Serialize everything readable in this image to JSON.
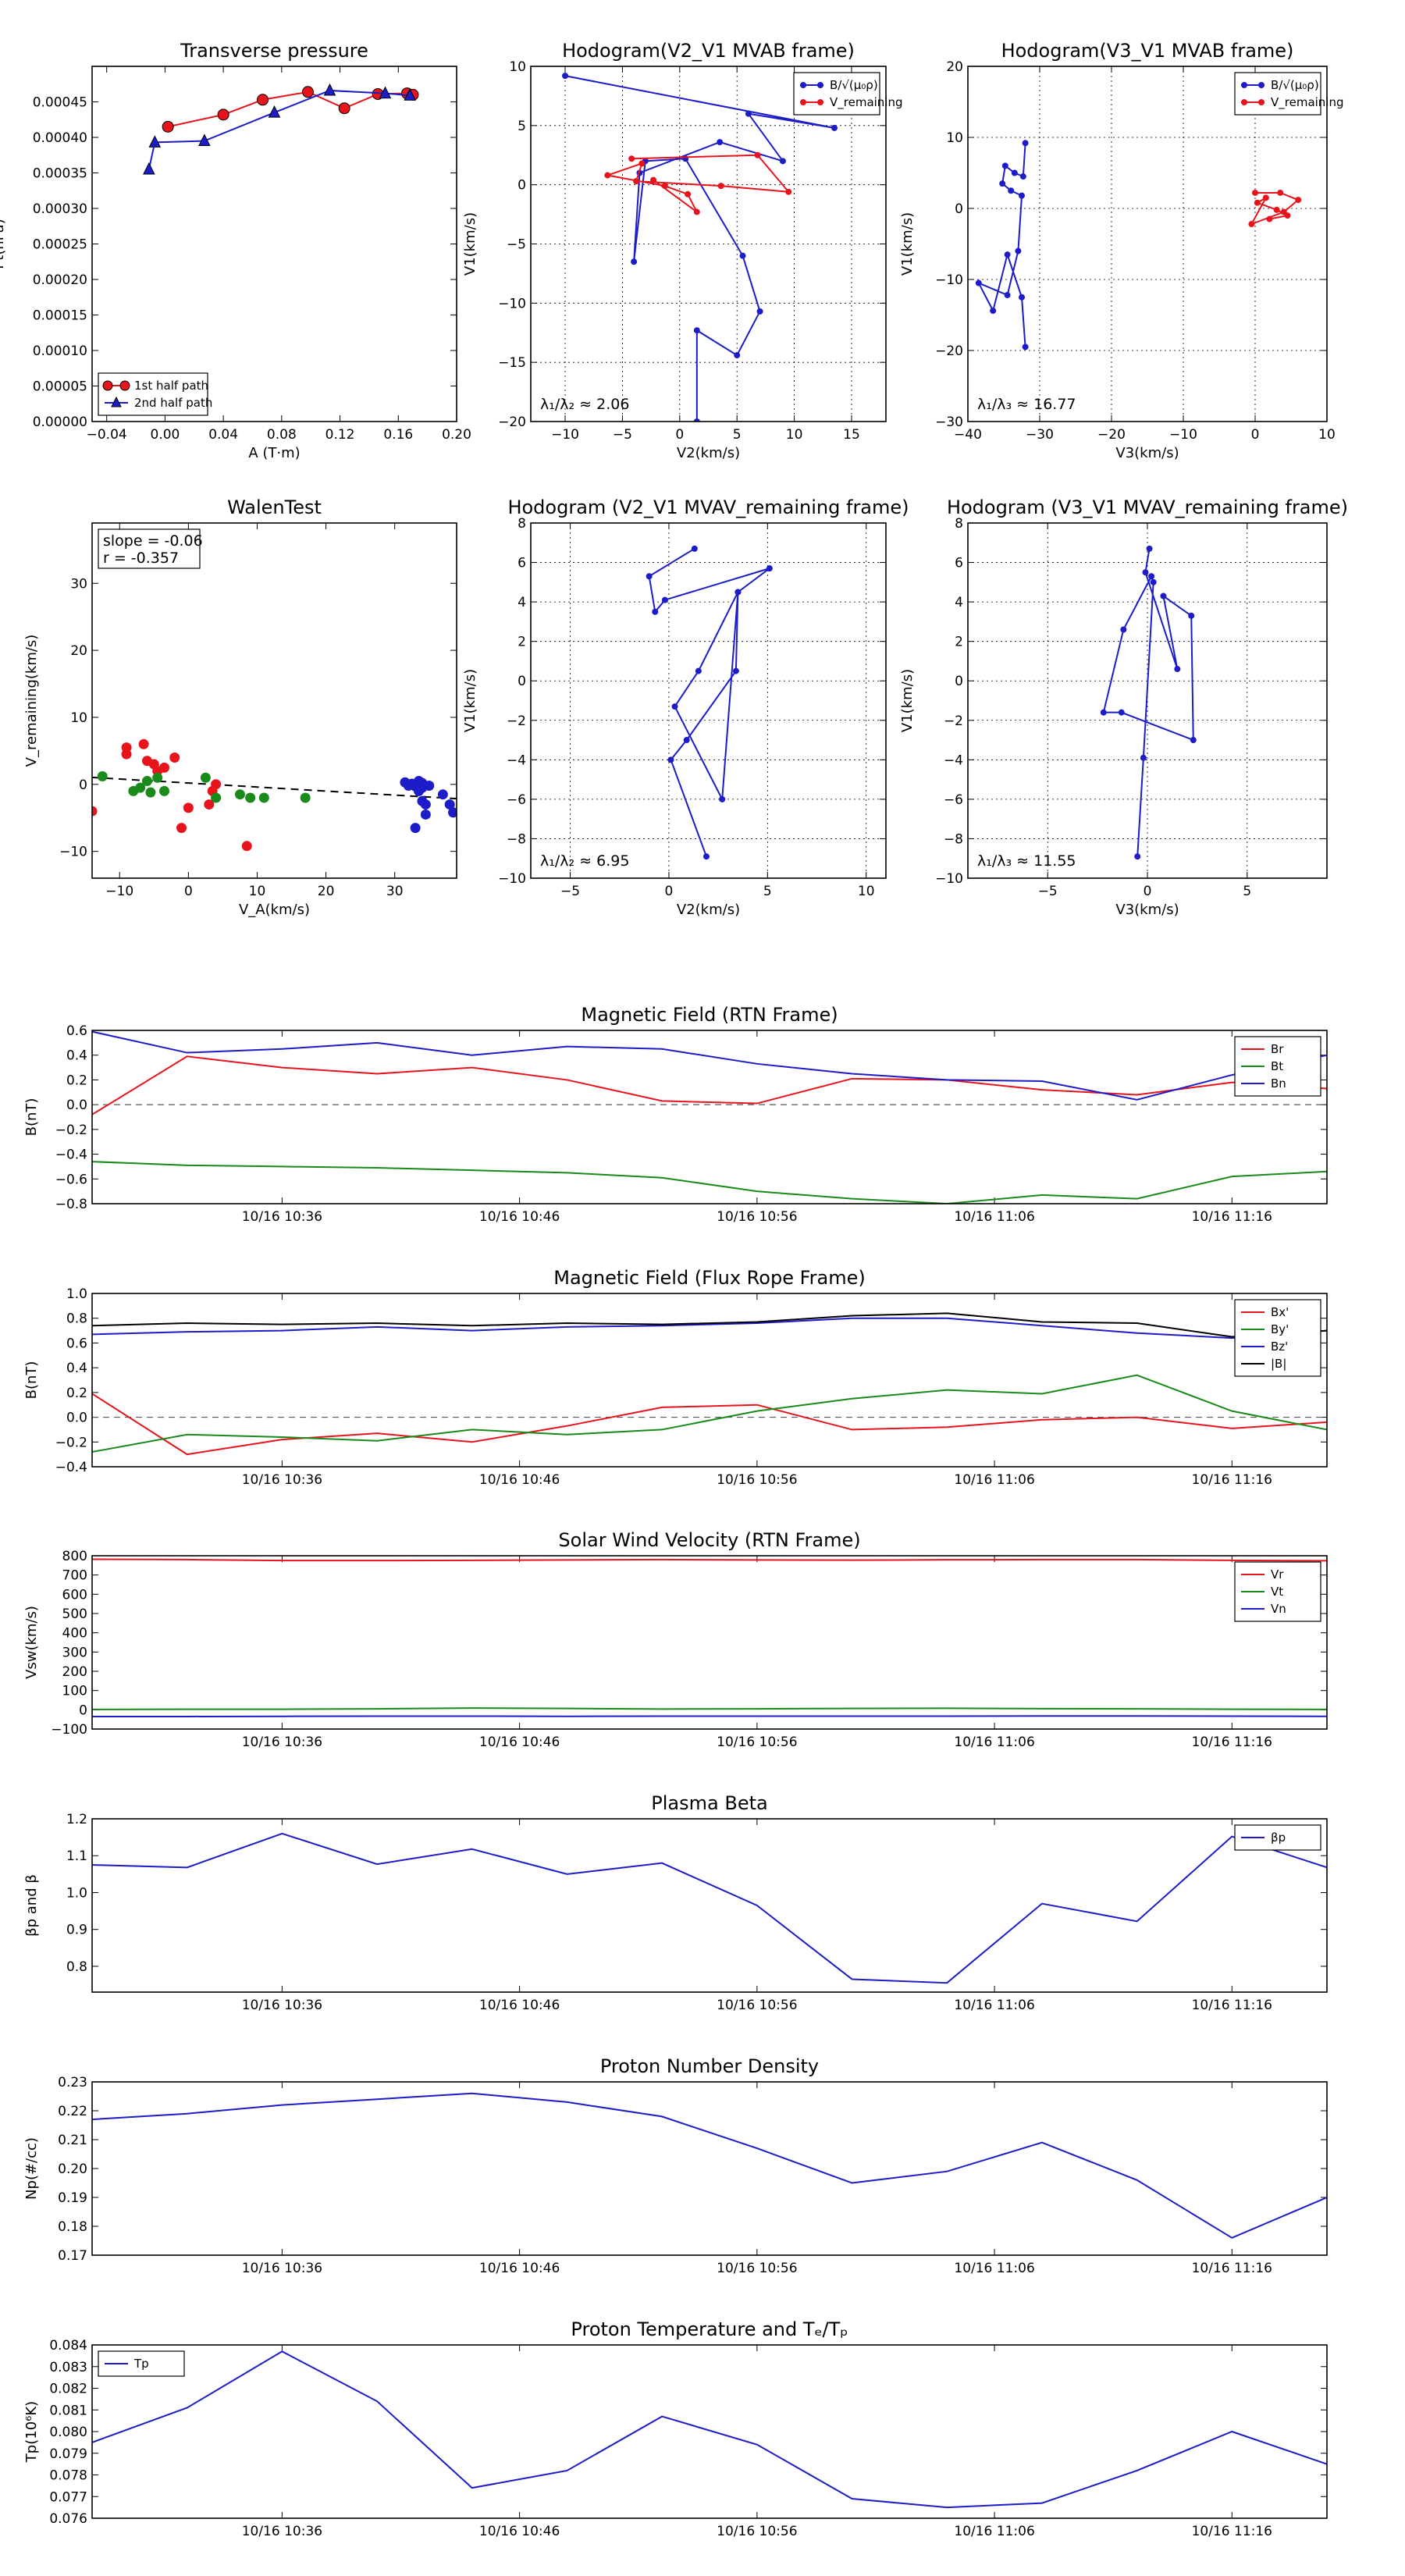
{
  "chart_data": [
    {
      "id": "transverse-pressure",
      "type": "line",
      "title": "Transverse pressure",
      "xlabel": "A (T·m)",
      "ylabel": "Pt(nPa)",
      "xlim": [
        -0.05,
        0.2
      ],
      "ylim": [
        0,
        0.0005
      ],
      "xticks": [
        -0.04,
        0.0,
        0.04,
        0.08,
        0.12,
        0.16,
        0.2
      ],
      "xtick_labels": [
        "−0.04",
        "0.00",
        "0.04",
        "0.08",
        "0.12",
        "0.16",
        "0.20"
      ],
      "yticks": [
        0,
        5e-05,
        0.0001,
        0.00015,
        0.0002,
        0.00025,
        0.0003,
        0.00035,
        0.0004,
        0.00045
      ],
      "ytick_labels": [
        "0.00000",
        "0.00005",
        "0.00010",
        "0.00015",
        "0.00020",
        "0.00025",
        "0.00030",
        "0.00035",
        "0.00040",
        "0.00045"
      ],
      "grid": false,
      "legend": "lower-left",
      "series": [
        {
          "name": "1st half path",
          "color": "#e8141c",
          "marker": "circle",
          "x": [
            0.002,
            0.04,
            0.067,
            0.098,
            0.123,
            0.146,
            0.166,
            0.17
          ],
          "y": [
            0.000415,
            0.000432,
            0.000453,
            0.000464,
            0.000441,
            0.000461,
            0.000462,
            0.00046
          ]
        },
        {
          "name": "2nd half path",
          "color": "#1c1cc8",
          "marker": "triangle",
          "x": [
            -0.011,
            -0.007,
            0.027,
            0.075,
            0.113,
            0.151,
            0.168
          ],
          "y": [
            0.000355,
            0.000393,
            0.000395,
            0.000435,
            0.000466,
            0.000462,
            0.000459
          ]
        }
      ]
    },
    {
      "id": "hodogram-v2v1-mvab",
      "type": "line",
      "title": "Hodogram(V2_V1 MVAB frame)",
      "xlabel": "V2(km/s)",
      "ylabel": "V1(km/s)",
      "xlim": [
        -13,
        18
      ],
      "ylim": [
        -20,
        10
      ],
      "xticks": [
        -10,
        -5,
        0,
        5,
        10,
        15
      ],
      "yticks": [
        -20,
        -15,
        -10,
        -5,
        0,
        5,
        10
      ],
      "grid": true,
      "legend": "top-right",
      "annotation": "λ₁/λ₂ ≈ 2.06",
      "series": [
        {
          "name": "B/√(μ₀ρ)",
          "color": "#1c1cc8",
          "x": [
            -10,
            13.5,
            6,
            9,
            3.5,
            -3.5,
            -4,
            -3,
            0.5,
            5.5,
            7,
            5,
            1.5,
            1.5
          ],
          "y": [
            9.2,
            4.8,
            6,
            2,
            3.6,
            1,
            -6.5,
            2,
            2.2,
            -6,
            -10.7,
            -14.4,
            -12.3,
            -20
          ]
        },
        {
          "name": "V_remaining",
          "color": "#e8141c",
          "x": [
            -4.2,
            6.8,
            9.5,
            3.6,
            -3.8,
            -3.3,
            -6.3,
            -1.3,
            0.7,
            1.5,
            -2.3
          ],
          "y": [
            2.2,
            2.5,
            -0.6,
            -0.1,
            0.3,
            1.8,
            0.8,
            -0.1,
            -0.8,
            -2.3,
            0.4
          ]
        }
      ]
    },
    {
      "id": "hodogram-v3v1-mvab",
      "type": "line",
      "title": "Hodogram(V3_V1 MVAB frame)",
      "xlabel": "V3(km/s)",
      "ylabel": "V1(km/s)",
      "xlim": [
        -40,
        10
      ],
      "ylim": [
        -30,
        20
      ],
      "xticks": [
        -40,
        -30,
        -20,
        -10,
        0,
        10
      ],
      "yticks": [
        -30,
        -20,
        -10,
        0,
        10,
        20
      ],
      "grid": true,
      "legend": "top-right",
      "annotation": "λ₁/λ₃ ≈ 16.77",
      "series": [
        {
          "name": "B/√(μ₀ρ)",
          "color": "#1c1cc8",
          "x": [
            -32,
            -32.3,
            -33.5,
            -34.8,
            -35.2,
            -34,
            -32.5,
            -33,
            -34.5,
            -38.5,
            -36.5,
            -34.5,
            -32.5,
            -32
          ],
          "y": [
            9.2,
            4.5,
            5,
            6,
            3.5,
            2.5,
            1.8,
            -6,
            -12.2,
            -10.5,
            -14.4,
            -6.5,
            -12.5,
            -19.5
          ]
        },
        {
          "name": "V_remaining",
          "color": "#e8141c",
          "x": [
            0,
            3.5,
            6,
            4,
            -0.5,
            1.5,
            0.3,
            3,
            4.5,
            2
          ],
          "y": [
            2.2,
            2.2,
            1.2,
            -0.5,
            -2.2,
            1.5,
            0.8,
            -0.2,
            -1,
            -1.5
          ]
        }
      ]
    },
    {
      "id": "walen-test",
      "type": "scatter",
      "title": "WalenTest",
      "xlabel": "V_A(km/s)",
      "ylabel": "V_remaining(km/s)",
      "xlim": [
        -14,
        39
      ],
      "ylim": [
        -14,
        39
      ],
      "xticks": [
        -10,
        0,
        10,
        20,
        30
      ],
      "yticks": [
        -10,
        0,
        10,
        20,
        30
      ],
      "grid": false,
      "annotation_lines": [
        "slope = -0.06",
        "r = -0.357"
      ],
      "fit": {
        "slope": -0.06,
        "intercept": 0.2,
        "color": "#000000"
      },
      "series": [
        {
          "name": "",
          "color": "#e8141c",
          "x": [
            -14,
            -9,
            -9,
            -6.5,
            -6,
            -5,
            -4.5,
            -3.5,
            -2,
            -1,
            0,
            3,
            3.5,
            4,
            8.5
          ],
          "y": [
            -4,
            4.5,
            5.5,
            6,
            3.5,
            3,
            2,
            2.5,
            4,
            -6.5,
            -3.5,
            -3,
            -1,
            0,
            -9.2
          ]
        },
        {
          "name": "",
          "color": "#1a8a1a",
          "x": [
            -12.5,
            -8,
            -7,
            -6,
            -5.5,
            -4.5,
            -3.5,
            2.5,
            4,
            7.5,
            9,
            11,
            17
          ],
          "y": [
            1.2,
            -1,
            -0.5,
            0.5,
            -1.2,
            1,
            -1,
            1,
            -2,
            -1.5,
            -2,
            -2,
            -2
          ]
        },
        {
          "name": "",
          "color": "#1c1cc8",
          "x": [
            31.5,
            32,
            32.5,
            33,
            33.5,
            33.5,
            34,
            34,
            34.5,
            34.5,
            35,
            33,
            34,
            37,
            38,
            38.5
          ],
          "y": [
            0.3,
            -0.2,
            0.1,
            -0.3,
            0.5,
            -1,
            0.2,
            -0.5,
            -3,
            -4.5,
            -0.2,
            -6.5,
            -2.5,
            -1.5,
            -3,
            -4.2
          ]
        }
      ]
    },
    {
      "id": "hodogram-v2v1-mvav",
      "type": "line",
      "title": "Hodogram (V2_V1 MVAV_remaining frame)",
      "xlabel": "V2(km/s)",
      "ylabel": "V1(km/s)",
      "xlim": [
        -7,
        11
      ],
      "ylim": [
        -10,
        8
      ],
      "xticks": [
        -5,
        0,
        5,
        10
      ],
      "yticks": [
        -10,
        -8,
        -6,
        -4,
        -2,
        0,
        2,
        4,
        6,
        8
      ],
      "grid": true,
      "annotation": "λ₁/λ₂ ≈ 6.95",
      "series": [
        {
          "name": "",
          "color": "#1c1cc8",
          "x": [
            1.3,
            -1,
            -0.7,
            -0.2,
            5.1,
            3.5,
            1.5,
            0.3,
            2.7,
            3.5,
            3.4,
            0.9,
            0.1,
            1.9
          ],
          "y": [
            6.7,
            5.3,
            3.5,
            4.1,
            5.7,
            4.5,
            0.5,
            -1.3,
            -6,
            4.5,
            0.5,
            -3,
            -4,
            -8.9
          ]
        }
      ]
    },
    {
      "id": "hodogram-v3v1-mvav",
      "type": "line",
      "title": "Hodogram (V3_V1 MVAV_remaining frame)",
      "xlabel": "V3(km/s)",
      "ylabel": "V1(km/s)",
      "xlim": [
        -9,
        9
      ],
      "ylim": [
        -10,
        8
      ],
      "xticks": [
        -5,
        0,
        5
      ],
      "yticks": [
        -10,
        -8,
        -6,
        -4,
        -2,
        0,
        2,
        4,
        6,
        8
      ],
      "grid": true,
      "annotation": "λ₁/λ₃ ≈ 11.55",
      "series": [
        {
          "name": "",
          "color": "#1c1cc8",
          "x": [
            0.1,
            -0.1,
            1.5,
            0.8,
            2.2,
            2.3,
            -1.3,
            -2.2,
            -1.2,
            0.2,
            0.3,
            -0.2,
            -0.5
          ],
          "y": [
            6.7,
            5.5,
            0.6,
            4.3,
            3.3,
            -3,
            -1.6,
            -1.6,
            2.6,
            5.3,
            5,
            -3.9,
            -8.9
          ]
        }
      ]
    },
    {
      "id": "magnetic-field-rtn",
      "type": "line",
      "title": "Magnetic Field (RTN Frame)",
      "ylabel": "B(nT)",
      "xlim": [
        0,
        52
      ],
      "ylim": [
        -0.8,
        0.6
      ],
      "xticks": [
        8,
        18,
        28,
        38,
        48
      ],
      "xtick_labels": [
        "10/16 10:36",
        "10/16 10:46",
        "10/16 10:56",
        "10/16 11:06",
        "10/16 11:16"
      ],
      "yticks": [
        -0.8,
        -0.6,
        -0.4,
        -0.2,
        0.0,
        0.2,
        0.4,
        0.6
      ],
      "zero_line": true,
      "legend": "top-right",
      "x": [
        0,
        4,
        8,
        12,
        16,
        20,
        24,
        28,
        32,
        36,
        40,
        44,
        48,
        52
      ],
      "series": [
        {
          "name": "Br",
          "color": "#e8141c",
          "values": [
            -0.08,
            0.39,
            0.3,
            0.25,
            0.3,
            0.2,
            0.03,
            0.01,
            0.21,
            0.2,
            0.12,
            0.08,
            0.18,
            0.13
          ]
        },
        {
          "name": "Bt",
          "color": "#1a8a1a",
          "values": [
            -0.46,
            -0.49,
            -0.5,
            -0.51,
            -0.53,
            -0.55,
            -0.59,
            -0.7,
            -0.76,
            -0.8,
            -0.73,
            -0.76,
            -0.58,
            -0.54
          ]
        },
        {
          "name": "Bn",
          "color": "#1c1cc8",
          "values": [
            0.59,
            0.42,
            0.45,
            0.5,
            0.4,
            0.47,
            0.45,
            0.33,
            0.25,
            0.2,
            0.19,
            0.04,
            0.24,
            0.4
          ]
        }
      ]
    },
    {
      "id": "magnetic-field-flux-rope",
      "type": "line",
      "title": "Magnetic Field (Flux Rope Frame)",
      "ylabel": "B(nT)",
      "xlim": [
        0,
        52
      ],
      "ylim": [
        -0.4,
        1.0
      ],
      "xticks": [
        8,
        18,
        28,
        38,
        48
      ],
      "xtick_labels": [
        "10/16 10:36",
        "10/16 10:46",
        "10/16 10:56",
        "10/16 11:06",
        "10/16 11:16"
      ],
      "yticks": [
        -0.4,
        -0.2,
        0.0,
        0.2,
        0.4,
        0.6,
        0.8,
        1.0
      ],
      "zero_line": true,
      "legend": "top-right",
      "x": [
        0,
        4,
        8,
        12,
        16,
        20,
        24,
        28,
        32,
        36,
        40,
        44,
        48,
        52
      ],
      "series": [
        {
          "name": "Bx'",
          "color": "#e8141c",
          "values": [
            0.19,
            -0.3,
            -0.18,
            -0.13,
            -0.2,
            -0.07,
            0.08,
            0.1,
            -0.1,
            -0.08,
            -0.02,
            0.0,
            -0.09,
            -0.04
          ]
        },
        {
          "name": "By'",
          "color": "#1a8a1a",
          "values": [
            -0.28,
            -0.14,
            -0.16,
            -0.19,
            -0.1,
            -0.14,
            -0.1,
            0.05,
            0.15,
            0.22,
            0.19,
            0.34,
            0.05,
            -0.1
          ]
        },
        {
          "name": "Bz'",
          "color": "#1c1cc8",
          "values": [
            0.67,
            0.69,
            0.7,
            0.73,
            0.7,
            0.73,
            0.74,
            0.76,
            0.8,
            0.8,
            0.74,
            0.68,
            0.64,
            0.7
          ]
        },
        {
          "name": "|B|",
          "color": "#000000",
          "values": [
            0.74,
            0.76,
            0.75,
            0.76,
            0.74,
            0.76,
            0.75,
            0.77,
            0.82,
            0.84,
            0.77,
            0.76,
            0.65,
            0.7
          ]
        }
      ]
    },
    {
      "id": "solar-wind-velocity",
      "type": "line",
      "title": "Solar Wind Velocity (RTN Frame)",
      "ylabel": "Vsw(km/s)",
      "xlim": [
        0,
        52
      ],
      "ylim": [
        -100,
        800
      ],
      "xticks": [
        8,
        18,
        28,
        38,
        48
      ],
      "xtick_labels": [
        "10/16 10:36",
        "10/16 10:46",
        "10/16 10:56",
        "10/16 11:06",
        "10/16 11:16"
      ],
      "yticks": [
        -100,
        0,
        100,
        200,
        300,
        400,
        500,
        600,
        700,
        800
      ],
      "legend": "top-right",
      "x": [
        0,
        4,
        8,
        12,
        16,
        20,
        24,
        28,
        32,
        36,
        40,
        44,
        48,
        52
      ],
      "series": [
        {
          "name": "Vr",
          "color": "#e8141c",
          "values": [
            782,
            780,
            775,
            775,
            776,
            778,
            780,
            778,
            777,
            779,
            780,
            780,
            776,
            774
          ]
        },
        {
          "name": "Vt",
          "color": "#1a8a1a",
          "values": [
            2,
            3,
            3,
            5,
            9,
            7,
            4,
            5,
            7,
            8,
            6,
            5,
            3,
            2
          ]
        },
        {
          "name": "Vn",
          "color": "#1c1cc8",
          "values": [
            -35,
            -35,
            -34,
            -33,
            -33,
            -34,
            -33,
            -33,
            -33,
            -33,
            -32,
            -32,
            -33,
            -34
          ]
        }
      ]
    },
    {
      "id": "plasma-beta",
      "type": "line",
      "title": "Plasma Beta",
      "ylabel": "βp and β",
      "xlim": [
        0,
        52
      ],
      "ylim": [
        0.73,
        1.2
      ],
      "xticks": [
        8,
        18,
        28,
        38,
        48
      ],
      "xtick_labels": [
        "10/16 10:36",
        "10/16 10:46",
        "10/16 10:56",
        "10/16 11:06",
        "10/16 11:16"
      ],
      "yticks": [
        0.8,
        0.9,
        1.0,
        1.1,
        1.2
      ],
      "legend": "top-right",
      "x": [
        0,
        4,
        8,
        12,
        16,
        20,
        24,
        28,
        32,
        36,
        40,
        44,
        48,
        52
      ],
      "series": [
        {
          "name": "βp",
          "color": "#1c1cc8",
          "values": [
            1.075,
            1.068,
            1.16,
            1.077,
            1.118,
            1.05,
            1.08,
            0.965,
            0.765,
            0.755,
            0.97,
            0.922,
            1.152,
            1.068
          ]
        }
      ]
    },
    {
      "id": "proton-number-density",
      "type": "line",
      "title": "Proton Number Density",
      "ylabel": "Np(#/cc)",
      "xlim": [
        0,
        52
      ],
      "ylim": [
        0.17,
        0.23
      ],
      "xticks": [
        8,
        18,
        28,
        38,
        48
      ],
      "xtick_labels": [
        "10/16 10:36",
        "10/16 10:46",
        "10/16 10:56",
        "10/16 11:06",
        "10/16 11:16"
      ],
      "yticks": [
        0.17,
        0.18,
        0.19,
        0.2,
        0.21,
        0.22,
        0.23
      ],
      "x": [
        0,
        4,
        8,
        12,
        16,
        20,
        24,
        28,
        32,
        36,
        40,
        44,
        48,
        52
      ],
      "series": [
        {
          "name": "",
          "color": "#1c1cc8",
          "values": [
            0.217,
            0.219,
            0.222,
            0.224,
            0.226,
            0.223,
            0.218,
            0.207,
            0.195,
            0.199,
            0.209,
            0.196,
            0.176,
            0.19
          ]
        }
      ]
    },
    {
      "id": "proton-temperature",
      "type": "line",
      "title": "Proton Temperature and Tₑ/Tₚ",
      "ylabel": "Tp(10⁶K)",
      "xlim": [
        0,
        52
      ],
      "ylim": [
        0.076,
        0.084
      ],
      "xticks": [
        8,
        18,
        28,
        38,
        48
      ],
      "xtick_labels": [
        "10/16 10:36",
        "10/16 10:46",
        "10/16 10:56",
        "10/16 11:06",
        "10/16 11:16"
      ],
      "yticks": [
        0.076,
        0.077,
        0.078,
        0.079,
        0.08,
        0.081,
        0.082,
        0.083,
        0.084
      ],
      "legend": "top-left",
      "x": [
        0,
        4,
        8,
        12,
        16,
        20,
        24,
        28,
        32,
        36,
        40,
        44,
        48,
        52
      ],
      "series": [
        {
          "name": "Tp",
          "color": "#1c1cc8",
          "values": [
            0.0795,
            0.0811,
            0.0837,
            0.0814,
            0.0774,
            0.0782,
            0.0807,
            0.0794,
            0.0769,
            0.0765,
            0.0767,
            0.0782,
            0.08,
            0.0785
          ]
        }
      ]
    }
  ]
}
